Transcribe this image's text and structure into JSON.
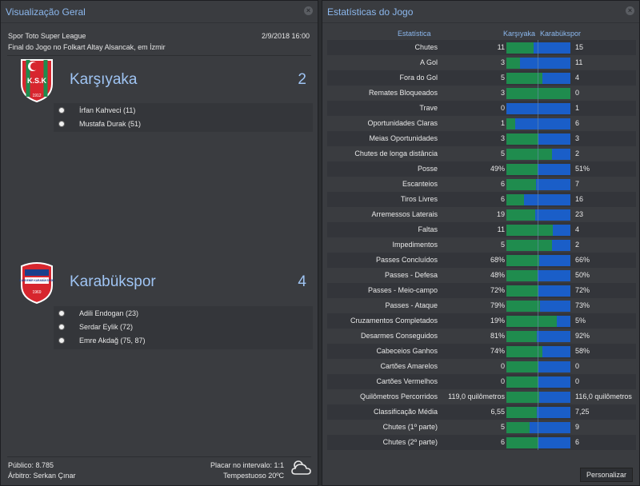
{
  "overview": {
    "title": "Visualização Geral",
    "competition": "Spor Toto Super League",
    "date": "2/9/2018 16:00",
    "venue_line": "Final do Jogo no Folkart Altay Alsancak, em İzmir",
    "home": {
      "name": "Karşıyaka",
      "score": "2",
      "crest_text": "K.S.K",
      "crest_year": "1912",
      "scorers": [
        "İrfan Kahveci (11)",
        "Mustafa Durak (51)"
      ]
    },
    "away": {
      "name": "Karabükspor",
      "score": "4",
      "crest_text": "KARDEMİR KARABÜKSPOR",
      "crest_year": "1969",
      "scorers": [
        "Adili Endogan (23)",
        "Serdar Eylik (72)",
        "Emre Akdağ (75, 87)"
      ]
    },
    "attendance": "Público: 8.785",
    "referee": "Árbitro: Serkan Çınar",
    "halftime": "Placar no intervalo: 1:1",
    "weather": "Tempestuoso 20ºC"
  },
  "stats": {
    "title": "Estatísticas do Jogo",
    "col_stat": "Estatística",
    "col_home": "Karşıyaka",
    "col_away": "Karabükspor",
    "button": "Personalizar",
    "rows": [
      {
        "label": "Chutes",
        "home": "11",
        "away": "15",
        "home_share": 0.42
      },
      {
        "label": "A Gol",
        "home": "3",
        "away": "11",
        "home_share": 0.21
      },
      {
        "label": "Fora do Gol",
        "home": "5",
        "away": "4",
        "home_share": 0.56
      },
      {
        "label": "Remates Bloqueados",
        "home": "3",
        "away": "0",
        "home_share": 1.0
      },
      {
        "label": "Trave",
        "home": "0",
        "away": "1",
        "home_share": 0.0
      },
      {
        "label": "Oportunidades Claras",
        "home": "1",
        "away": "6",
        "home_share": 0.14
      },
      {
        "label": "Meias Oportunidades",
        "home": "3",
        "away": "3",
        "home_share": 0.5
      },
      {
        "label": "Chutes de longa distância",
        "home": "5",
        "away": "2",
        "home_share": 0.71
      },
      {
        "label": "Posse",
        "home": "49%",
        "away": "51%",
        "home_share": 0.49
      },
      {
        "label": "Escanteios",
        "home": "6",
        "away": "7",
        "home_share": 0.46
      },
      {
        "label": "Tiros Livres",
        "home": "6",
        "away": "16",
        "home_share": 0.27
      },
      {
        "label": "Arremessos Laterais",
        "home": "19",
        "away": "23",
        "home_share": 0.45
      },
      {
        "label": "Faltas",
        "home": "11",
        "away": "4",
        "home_share": 0.73
      },
      {
        "label": "Impedimentos",
        "home": "5",
        "away": "2",
        "home_share": 0.71
      },
      {
        "label": "Passes Concluídos",
        "home": "68%",
        "away": "66%",
        "home_share": 0.51
      },
      {
        "label": "Passes - Defesa",
        "home": "48%",
        "away": "50%",
        "home_share": 0.49
      },
      {
        "label": "Passes - Meio-campo",
        "home": "72%",
        "away": "72%",
        "home_share": 0.5
      },
      {
        "label": "Passes - Ataque",
        "home": "79%",
        "away": "73%",
        "home_share": 0.52
      },
      {
        "label": "Cruzamentos Completados",
        "home": "19%",
        "away": "5%",
        "home_share": 0.79
      },
      {
        "label": "Desarmes Conseguidos",
        "home": "81%",
        "away": "92%",
        "home_share": 0.47
      },
      {
        "label": "Cabeceios Ganhos",
        "home": "74%",
        "away": "58%",
        "home_share": 0.56
      },
      {
        "label": "Cartões Amarelos",
        "home": "0",
        "away": "0",
        "home_share": 0.5
      },
      {
        "label": "Cartões Vermelhos",
        "home": "0",
        "away": "0",
        "home_share": 0.5
      },
      {
        "label": "Quilômetros Percorridos",
        "home": "119,0 quilômetros",
        "away": "116,0 quilômetros",
        "home_share": 0.51
      },
      {
        "label": "Classificação Média",
        "home": "6,55",
        "away": "7,25",
        "home_share": 0.47
      },
      {
        "label": "Chutes (1º parte)",
        "home": "5",
        "away": "9",
        "home_share": 0.36
      },
      {
        "label": "Chutes (2º parte)",
        "home": "6",
        "away": "6",
        "home_share": 0.5
      }
    ]
  },
  "colors": {
    "home_bar": "#1f8c4e",
    "away_bar": "#1a5ec8",
    "accent": "#8cb8ee"
  }
}
